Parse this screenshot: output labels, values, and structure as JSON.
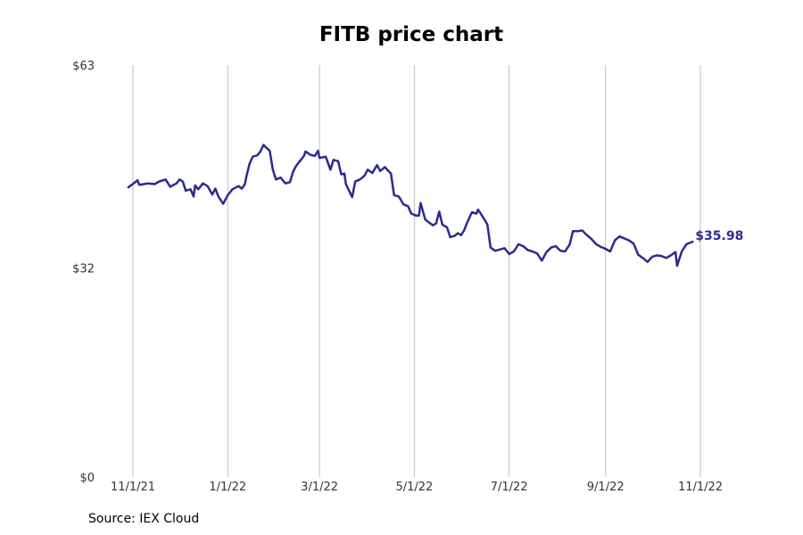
{
  "title": "FITB price chart",
  "source": "Source: IEX Cloud",
  "colors": {
    "line": "#2e2a8f",
    "grid": "#bfbfbf",
    "text": "#333333"
  },
  "chart_data": {
    "type": "line",
    "title": "FITB price chart",
    "xlabel": "",
    "ylabel": "",
    "ylim": [
      0,
      63
    ],
    "yticks": [
      {
        "value": 0,
        "label": "$0"
      },
      {
        "value": 32,
        "label": "$32"
      },
      {
        "value": 63,
        "label": "$63"
      }
    ],
    "xticks": [
      {
        "date": "2021-11-01",
        "label": "11/1/21"
      },
      {
        "date": "2022-01-01",
        "label": "1/1/22"
      },
      {
        "date": "2022-03-01",
        "label": "3/1/22"
      },
      {
        "date": "2022-05-01",
        "label": "5/1/22"
      },
      {
        "date": "2022-07-01",
        "label": "7/1/22"
      },
      {
        "date": "2022-09-01",
        "label": "9/1/22"
      },
      {
        "date": "2022-11-01",
        "label": "11/1/22"
      }
    ],
    "grid": "vertical",
    "end_label": "$35.98",
    "series": [
      {
        "points": [
          [
            "2021-10-29",
            44.3
          ],
          [
            "2021-11-02",
            45.0
          ],
          [
            "2021-11-04",
            45.4
          ],
          [
            "2021-11-05",
            44.7
          ],
          [
            "2021-11-08",
            44.8
          ],
          [
            "2021-11-11",
            44.9
          ],
          [
            "2021-11-15",
            44.8
          ],
          [
            "2021-11-18",
            45.2
          ],
          [
            "2021-11-22",
            45.5
          ],
          [
            "2021-11-25",
            44.4
          ],
          [
            "2021-11-29",
            44.9
          ],
          [
            "2021-12-01",
            45.5
          ],
          [
            "2021-12-03",
            45.2
          ],
          [
            "2021-12-05",
            43.8
          ],
          [
            "2021-12-08",
            44.0
          ],
          [
            "2021-12-10",
            42.9
          ],
          [
            "2021-12-11",
            44.6
          ],
          [
            "2021-12-13",
            44.0
          ],
          [
            "2021-12-16",
            44.9
          ],
          [
            "2021-12-19",
            44.5
          ],
          [
            "2021-12-22",
            43.2
          ],
          [
            "2021-12-24",
            44.1
          ],
          [
            "2021-12-26",
            42.9
          ],
          [
            "2021-12-29",
            41.8
          ],
          [
            "2022-01-01",
            43.1
          ],
          [
            "2022-01-04",
            44.0
          ],
          [
            "2022-01-08",
            44.5
          ],
          [
            "2022-01-10",
            44.1
          ],
          [
            "2022-01-12",
            44.8
          ],
          [
            "2022-01-13",
            46.0
          ],
          [
            "2022-01-15",
            47.9
          ],
          [
            "2022-01-17",
            49.0
          ],
          [
            "2022-01-20",
            49.2
          ],
          [
            "2022-01-22",
            49.8
          ],
          [
            "2022-01-24",
            50.8
          ],
          [
            "2022-01-26",
            50.3
          ],
          [
            "2022-01-28",
            49.9
          ],
          [
            "2022-01-30",
            47.0
          ],
          [
            "2022-02-01",
            45.5
          ],
          [
            "2022-02-04",
            45.8
          ],
          [
            "2022-02-07",
            44.9
          ],
          [
            "2022-02-10",
            45.1
          ],
          [
            "2022-02-12",
            46.7
          ],
          [
            "2022-02-14",
            47.6
          ],
          [
            "2022-02-17",
            48.5
          ],
          [
            "2022-02-19",
            49.1
          ],
          [
            "2022-02-20",
            49.8
          ],
          [
            "2022-02-23",
            49.3
          ],
          [
            "2022-02-26",
            49.1
          ],
          [
            "2022-02-28",
            49.9
          ],
          [
            "2022-03-01",
            48.8
          ],
          [
            "2022-03-05",
            49.0
          ],
          [
            "2022-03-08",
            47.0
          ],
          [
            "2022-03-10",
            48.5
          ],
          [
            "2022-03-13",
            48.3
          ],
          [
            "2022-03-15",
            46.3
          ],
          [
            "2022-03-17",
            46.4
          ],
          [
            "2022-03-18",
            44.8
          ],
          [
            "2022-03-22",
            42.8
          ],
          [
            "2022-03-24",
            45.2
          ],
          [
            "2022-03-27",
            45.5
          ],
          [
            "2022-03-30",
            46.1
          ],
          [
            "2022-04-01",
            47.0
          ],
          [
            "2022-04-04",
            46.5
          ],
          [
            "2022-04-07",
            47.7
          ],
          [
            "2022-04-09",
            46.8
          ],
          [
            "2022-04-12",
            47.4
          ],
          [
            "2022-04-16",
            46.4
          ],
          [
            "2022-04-18",
            43.1
          ],
          [
            "2022-04-21",
            42.9
          ],
          [
            "2022-04-24",
            41.7
          ],
          [
            "2022-04-27",
            41.4
          ],
          [
            "2022-04-29",
            40.3
          ],
          [
            "2022-05-02",
            40.0
          ],
          [
            "2022-05-04",
            40.0
          ],
          [
            "2022-05-05",
            41.9
          ],
          [
            "2022-05-08",
            39.4
          ],
          [
            "2022-05-10",
            39.0
          ],
          [
            "2022-05-13",
            38.5
          ],
          [
            "2022-05-15",
            38.8
          ],
          [
            "2022-05-17",
            40.6
          ],
          [
            "2022-05-19",
            38.6
          ],
          [
            "2022-05-22",
            38.2
          ],
          [
            "2022-05-24",
            36.7
          ],
          [
            "2022-05-27",
            36.9
          ],
          [
            "2022-05-29",
            37.3
          ],
          [
            "2022-05-31",
            37.0
          ],
          [
            "2022-06-02",
            37.7
          ],
          [
            "2022-06-04",
            38.9
          ],
          [
            "2022-06-07",
            40.5
          ],
          [
            "2022-06-10",
            40.3
          ],
          [
            "2022-06-11",
            40.9
          ],
          [
            "2022-06-14",
            39.8
          ],
          [
            "2022-06-17",
            38.6
          ],
          [
            "2022-06-19",
            35.1
          ],
          [
            "2022-06-22",
            34.6
          ],
          [
            "2022-06-25",
            34.8
          ],
          [
            "2022-06-28",
            35.0
          ],
          [
            "2022-07-01",
            34.1
          ],
          [
            "2022-07-04",
            34.5
          ],
          [
            "2022-07-07",
            35.6
          ],
          [
            "2022-07-10",
            35.3
          ],
          [
            "2022-07-13",
            34.7
          ],
          [
            "2022-07-16",
            34.5
          ],
          [
            "2022-07-19",
            34.2
          ],
          [
            "2022-07-22",
            33.1
          ],
          [
            "2022-07-25",
            34.4
          ],
          [
            "2022-07-28",
            35.1
          ],
          [
            "2022-07-31",
            35.3
          ],
          [
            "2022-08-03",
            34.6
          ],
          [
            "2022-08-06",
            34.5
          ],
          [
            "2022-08-09",
            35.6
          ],
          [
            "2022-08-11",
            37.6
          ],
          [
            "2022-08-14",
            37.6
          ],
          [
            "2022-08-17",
            37.7
          ],
          [
            "2022-08-20",
            37.0
          ],
          [
            "2022-08-23",
            36.4
          ],
          [
            "2022-08-26",
            35.6
          ],
          [
            "2022-08-29",
            35.2
          ],
          [
            "2022-09-01",
            34.9
          ],
          [
            "2022-09-04",
            34.5
          ],
          [
            "2022-09-07",
            36.2
          ],
          [
            "2022-09-10",
            36.8
          ],
          [
            "2022-09-13",
            36.5
          ],
          [
            "2022-09-16",
            36.2
          ],
          [
            "2022-09-19",
            35.7
          ],
          [
            "2022-09-22",
            34.0
          ],
          [
            "2022-09-25",
            33.5
          ],
          [
            "2022-09-28",
            32.9
          ],
          [
            "2022-10-01",
            33.7
          ],
          [
            "2022-10-04",
            33.9
          ],
          [
            "2022-10-07",
            33.8
          ],
          [
            "2022-10-10",
            33.5
          ],
          [
            "2022-10-13",
            33.9
          ],
          [
            "2022-10-16",
            34.4
          ],
          [
            "2022-10-17",
            32.3
          ],
          [
            "2022-10-20",
            34.5
          ],
          [
            "2022-10-23",
            35.6
          ],
          [
            "2022-10-25",
            35.8
          ],
          [
            "2022-10-27",
            35.98
          ]
        ]
      }
    ]
  }
}
